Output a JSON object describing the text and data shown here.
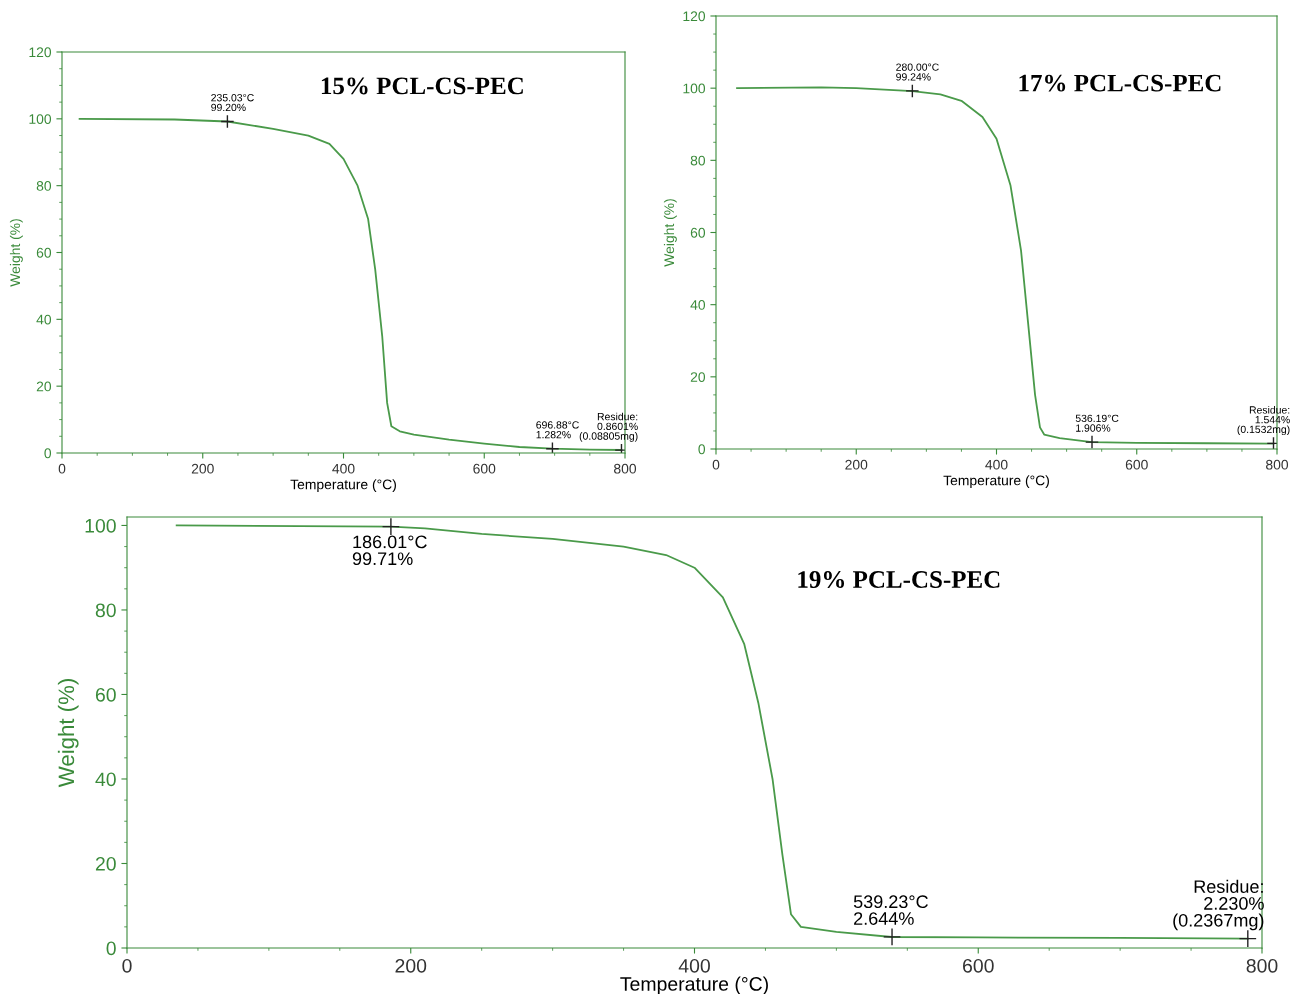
{
  "chart_data": [
    {
      "type": "line",
      "xlabel": "Temperature (°C)",
      "ylabel": "Weight (%)",
      "xlim": [
        0,
        800
      ],
      "ylim": [
        0,
        120
      ],
      "xticks": [
        0,
        200,
        400,
        600,
        800
      ],
      "yticks": [
        0,
        20,
        40,
        60,
        80,
        100,
        120
      ],
      "grid": false,
      "legend": false,
      "marker": "none",
      "line_style": "solid",
      "series": [
        {
          "color": "#4a9a4a",
          "x": [
            25,
            160,
            235,
            300,
            350,
            380,
            400,
            420,
            435,
            445,
            455,
            462,
            468,
            480,
            500,
            550,
            600,
            650,
            697,
            750,
            795
          ],
          "values": [
            100,
            99.8,
            99.2,
            97,
            95,
            92.5,
            88,
            80,
            70,
            55,
            35,
            15,
            8,
            6.5,
            5.5,
            4,
            2.8,
            1.8,
            1.3,
            1,
            0.9
          ]
        }
      ],
      "annotations": [
        "15% PCL-CS-PEC",
        {
          "text": "235.03°C\n99.20%",
          "x": 235.03,
          "y": 99.2
        },
        {
          "text": "696.88°C\n1.282%",
          "x": 696.88,
          "y": 1.282
        },
        {
          "text": "Residue:\n0.8601%\n(0.08805mg)",
          "x": 795,
          "y": 0.86
        }
      ]
    },
    {
      "type": "line",
      "xlabel": "Temperature (°C)",
      "ylabel": "Weight (%)",
      "xlim": [
        0,
        800
      ],
      "ylim": [
        0,
        120
      ],
      "xticks": [
        0,
        200,
        400,
        600,
        800
      ],
      "yticks": [
        0,
        20,
        40,
        60,
        80,
        100,
        120
      ],
      "grid": false,
      "legend": false,
      "marker": "none",
      "line_style": "solid",
      "series": [
        {
          "color": "#4a9a4a",
          "x": [
            30,
            150,
            200,
            280,
            320,
            350,
            380,
            400,
            420,
            435,
            445,
            455,
            462,
            468,
            490,
            536,
            600,
            700,
            795
          ],
          "values": [
            100,
            100.2,
            100,
            99.2,
            98.3,
            96.5,
            92,
            86,
            73,
            55,
            35,
            15,
            6,
            4,
            3,
            1.9,
            1.7,
            1.6,
            1.5
          ]
        }
      ],
      "annotations": [
        "17% PCL-CS-PEC",
        {
          "text": "280.00°C\n99.24%",
          "x": 280,
          "y": 99.24
        },
        {
          "text": "536.19°C\n1.906%",
          "x": 536.19,
          "y": 1.906
        },
        {
          "text": "Residue:\n1.544%\n(0.1532mg)",
          "x": 795,
          "y": 1.544
        }
      ]
    },
    {
      "type": "line",
      "xlabel": "Temperature (°C)",
      "ylabel": "Weight (%)",
      "xlim": [
        0,
        800
      ],
      "ylim": [
        0,
        102
      ],
      "xticks": [
        0,
        200,
        400,
        600,
        800
      ],
      "yticks": [
        0,
        20,
        40,
        60,
        80,
        100
      ],
      "grid": false,
      "legend": false,
      "marker": "none",
      "line_style": "solid",
      "series": [
        {
          "color": "#4a9a4a",
          "x": [
            35,
            186,
            210,
            250,
            300,
            350,
            380,
            400,
            420,
            435,
            445,
            455,
            462,
            468,
            475,
            500,
            539,
            600,
            700,
            790
          ],
          "values": [
            100,
            99.7,
            99.3,
            98,
            96.8,
            95,
            93,
            90,
            83,
            72,
            58,
            40,
            22,
            8,
            5,
            3.8,
            2.6,
            2.5,
            2.4,
            2.2
          ]
        }
      ],
      "annotations": [
        "19% PCL-CS-PEC",
        {
          "text": "186.01°C\n99.71%",
          "x": 186.01,
          "y": 99.71
        },
        {
          "text": "539.23°C\n2.644%",
          "x": 539.23,
          "y": 2.644
        },
        {
          "text": "Residue:\n2.230%\n(0.2367mg)",
          "x": 790,
          "y": 2.23
        }
      ]
    }
  ]
}
